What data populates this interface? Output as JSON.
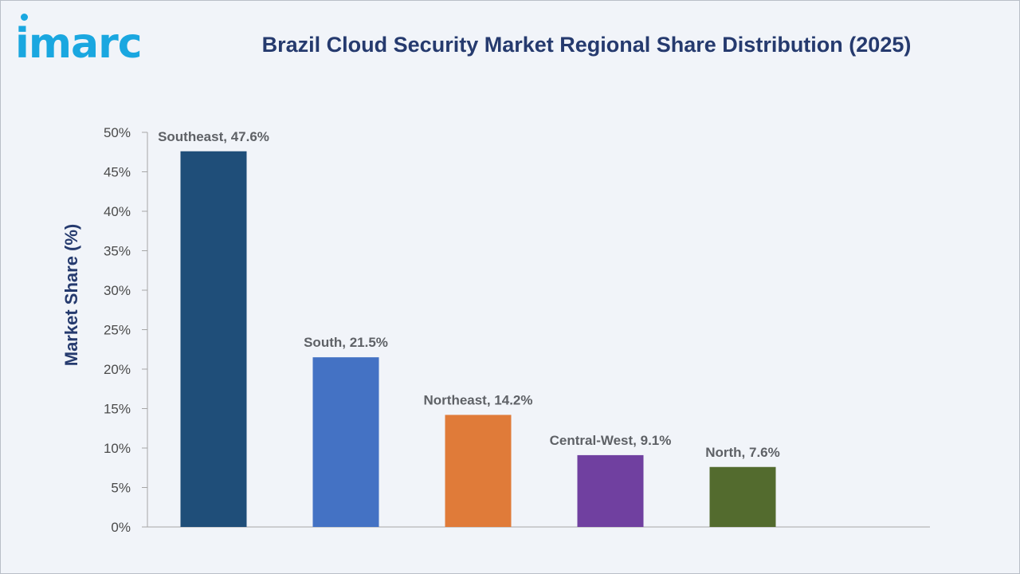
{
  "brand": {
    "logo_text": "imarc",
    "color": "#1aa7e0"
  },
  "chart_data": {
    "type": "bar",
    "title": "Brazil Cloud Security Market Regional Share Distribution (2025)",
    "xlabel": "",
    "ylabel": "Market Share (%)",
    "ylim": [
      0,
      50
    ],
    "yticks": [
      0,
      5,
      10,
      15,
      20,
      25,
      30,
      35,
      40,
      45,
      50
    ],
    "ytick_suffix": "%",
    "grid": false,
    "legend": "none",
    "categories": [
      "Southeast",
      "South",
      "Northeast",
      "Central-West",
      "North"
    ],
    "values": [
      47.6,
      21.5,
      14.2,
      9.1,
      7.6
    ],
    "data_labels": [
      "Southeast, 47.6%",
      "South, 21.5%",
      "Northeast, 14.2%",
      "Central-West, 9.1%",
      "North, 7.6%"
    ],
    "colors": [
      "#1f4e79",
      "#4472c4",
      "#e07b39",
      "#7040a0",
      "#536b2e"
    ]
  }
}
